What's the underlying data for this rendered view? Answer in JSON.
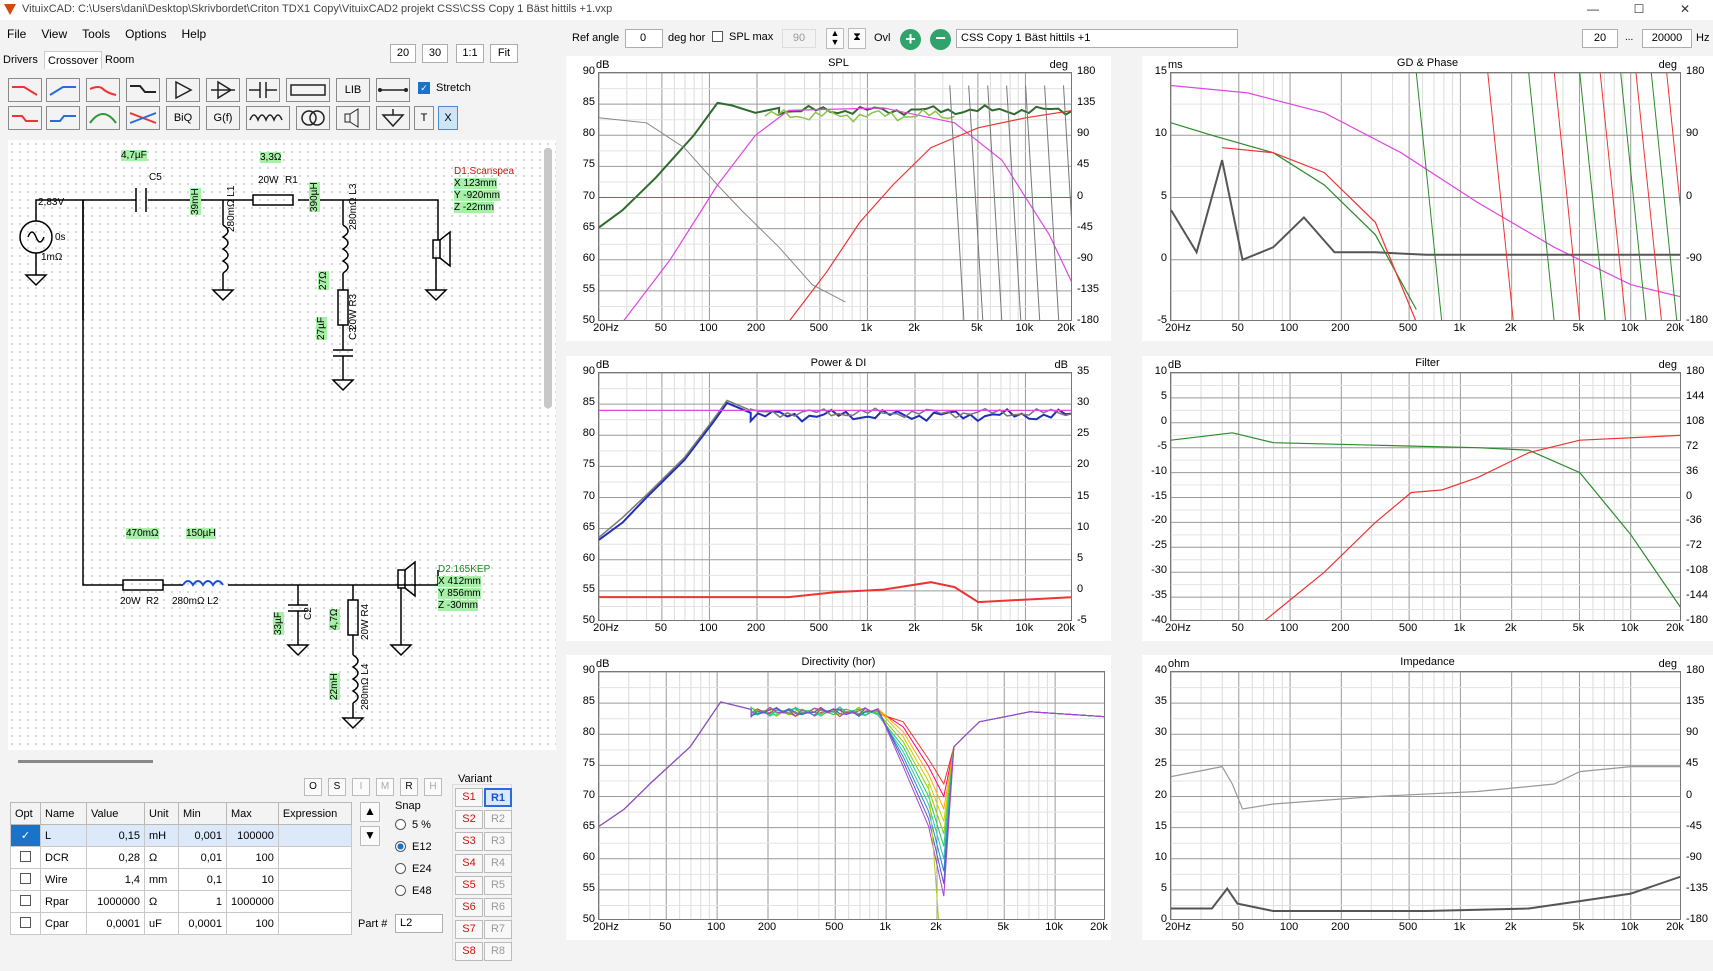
{
  "window": {
    "title": "VituixCAD: C:\\Users\\dani\\Desktop\\Skrivbordet\\Criton TDX1 Copy\\VituixCAD2 projekt CSS\\CSS Copy 1 Bäst hittils +1.vxp",
    "min": "—",
    "max": "☐",
    "close": "✕"
  },
  "menu": [
    "File",
    "View",
    "Tools",
    "Options",
    "Help"
  ],
  "zoom": {
    "z1": "20",
    "z2": "30",
    "z3": "1:1",
    "z4": "Fit"
  },
  "tabs": {
    "drivers": "Drivers",
    "crossover": "Crossover",
    "room": "Room"
  },
  "palette": {
    "lib": "LIB",
    "biq": "BiQ",
    "gf": "G(f)",
    "t": "T",
    "x": "X",
    "stretch": "Stretch"
  },
  "top": {
    "ref_angle_label": "Ref angle",
    "ref_angle": "0",
    "deg_hor": "deg hor",
    "spl_max": "SPL max",
    "spl_max_val": "90",
    "ovl": "Ovl",
    "overlay_name": "CSS Copy 1 Bäst hittils +1",
    "fmin": "20",
    "dots": "...",
    "fmax": "20000",
    "hz": "Hz"
  },
  "schematic": {
    "gen": {
      "v": "2,83V",
      "t": "0s",
      "r": "1mΩ"
    },
    "c5": {
      "val": "4,7µF",
      "name": "C5"
    },
    "r1": {
      "val": "3,3Ω",
      "w": "20W",
      "name": "R1"
    },
    "l1": {
      "val": "39mH",
      "r": "280mΩ L1"
    },
    "l3": {
      "val": "390µH",
      "r": "280mΩ L3"
    },
    "r3": {
      "val": "27Ω",
      "r": "20W R3"
    },
    "c3": {
      "val": "27µF",
      "r": "C3"
    },
    "d1": {
      "name": "D1.Scanspea",
      "x": "X 123mm",
      "y": "Y -920mm",
      "z": "Z -22mm"
    },
    "r2": {
      "val": "470mΩ",
      "w": "20W",
      "name": "R2"
    },
    "l2": {
      "val": "150µH",
      "r": "280mΩ L2"
    },
    "c2": {
      "val": "33µF",
      "r": "C2"
    },
    "r4": {
      "val": "4,7Ω",
      "r": "20W R4"
    },
    "l4": {
      "val": "22mH",
      "r": "280mΩ L4"
    },
    "d2": {
      "name": "D2.165KEP",
      "x": "X 412mm",
      "y": "Y 856mm",
      "z": "Z -30mm"
    }
  },
  "mode_buttons": [
    "O",
    "S",
    "I",
    "M",
    "R",
    "H"
  ],
  "table": {
    "headers": [
      "Opt",
      "Name",
      "Value",
      "Unit",
      "Min",
      "Max",
      "Expression"
    ],
    "rows": [
      {
        "opt": "✓",
        "name": "L",
        "value": "0,15",
        "unit": "mH",
        "min": "0,001",
        "max": "100000",
        "expr": ""
      },
      {
        "opt": "",
        "name": "DCR",
        "value": "0,28",
        "unit": "Ω",
        "min": "0,01",
        "max": "100",
        "expr": ""
      },
      {
        "opt": "",
        "name": "Wire",
        "value": "1,4",
        "unit": "mm",
        "min": "0,1",
        "max": "10",
        "expr": ""
      },
      {
        "opt": "",
        "name": "Rpar",
        "value": "1000000",
        "unit": "Ω",
        "min": "1",
        "max": "1000000",
        "expr": ""
      },
      {
        "opt": "",
        "name": "Cpar",
        "value": "0,0001",
        "unit": "uF",
        "min": "0,0001",
        "max": "100",
        "expr": ""
      }
    ]
  },
  "snap": {
    "label": "Snap",
    "opts": [
      "5 %",
      "E12",
      "E24",
      "E48"
    ],
    "selected": "E12"
  },
  "part": {
    "label": "Part #",
    "value": "L2"
  },
  "variant": {
    "label": "Variant",
    "s": [
      "S1",
      "S2",
      "S3",
      "S4",
      "S5",
      "S6",
      "S7",
      "S8"
    ],
    "r": [
      "R1",
      "R2",
      "R3",
      "R4",
      "R5",
      "R6",
      "R7",
      "R8"
    ],
    "active": "R1"
  },
  "xticks": [
    "20Hz",
    "50",
    "100",
    "200",
    "500",
    "1k",
    "2k",
    "5k",
    "10k",
    "20k"
  ],
  "charts": {
    "spl": {
      "title": "SPL",
      "ul": "dB",
      "ur": "deg",
      "yl": [
        "90",
        "85",
        "80",
        "75",
        "70",
        "65",
        "60",
        "55",
        "50"
      ],
      "yr": [
        "180",
        "135",
        "90",
        "45",
        "0",
        "-45",
        "-90",
        "-135",
        "-180"
      ]
    },
    "gd": {
      "title": "GD & Phase",
      "ul": "ms",
      "ur": "deg",
      "yl": [
        "15",
        "10",
        "5",
        "0",
        "-5"
      ],
      "yr": [
        "180",
        "90",
        "0",
        "-90",
        "-180"
      ]
    },
    "pw": {
      "title": "Power & DI",
      "ul": "dB",
      "ur": "dB",
      "yl": [
        "90",
        "85",
        "80",
        "75",
        "70",
        "65",
        "60",
        "55",
        "50"
      ],
      "yr": [
        "35",
        "30",
        "25",
        "20",
        "15",
        "10",
        "5",
        "0",
        "-5"
      ]
    },
    "flt": {
      "title": "Filter",
      "ul": "dB",
      "ur": "deg",
      "yl": [
        "10",
        "5",
        "0",
        "-5",
        "-10",
        "-15",
        "-20",
        "-25",
        "-30",
        "-35",
        "-40"
      ],
      "yr": [
        "180",
        "144",
        "108",
        "72",
        "36",
        "0",
        "-36",
        "-72",
        "-108",
        "-144",
        "-180"
      ]
    },
    "dir": {
      "title": "Directivity (hor)",
      "ul": "dB",
      "ur": "",
      "yl": [
        "90",
        "85",
        "80",
        "75",
        "70",
        "65",
        "60",
        "55",
        "50"
      ],
      "yr": []
    },
    "imp": {
      "title": "Impedance",
      "ul": "ohm",
      "ur": "deg",
      "yl": [
        "40",
        "35",
        "30",
        "25",
        "20",
        "15",
        "10",
        "5",
        "0"
      ],
      "yr": [
        "180",
        "135",
        "90",
        "45",
        "0",
        "-45",
        "-90",
        "-135",
        "-180"
      ]
    }
  }
}
